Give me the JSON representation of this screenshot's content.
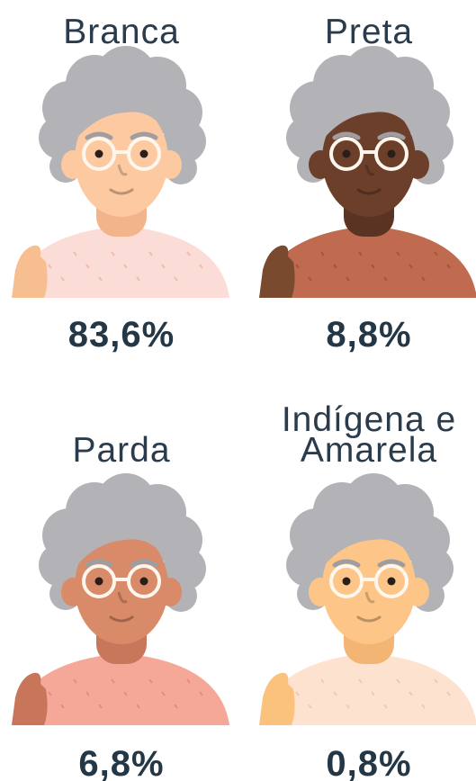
{
  "items": [
    {
      "label": [
        "Branca"
      ],
      "value": "83,6%"
    },
    {
      "label": [
        "Preta"
      ],
      "value": "8,8%"
    },
    {
      "label": [
        "Parda"
      ],
      "value": "6,8%"
    },
    {
      "label": [
        "Indígena e",
        "Amarela"
      ],
      "value": "0,8%"
    }
  ]
}
